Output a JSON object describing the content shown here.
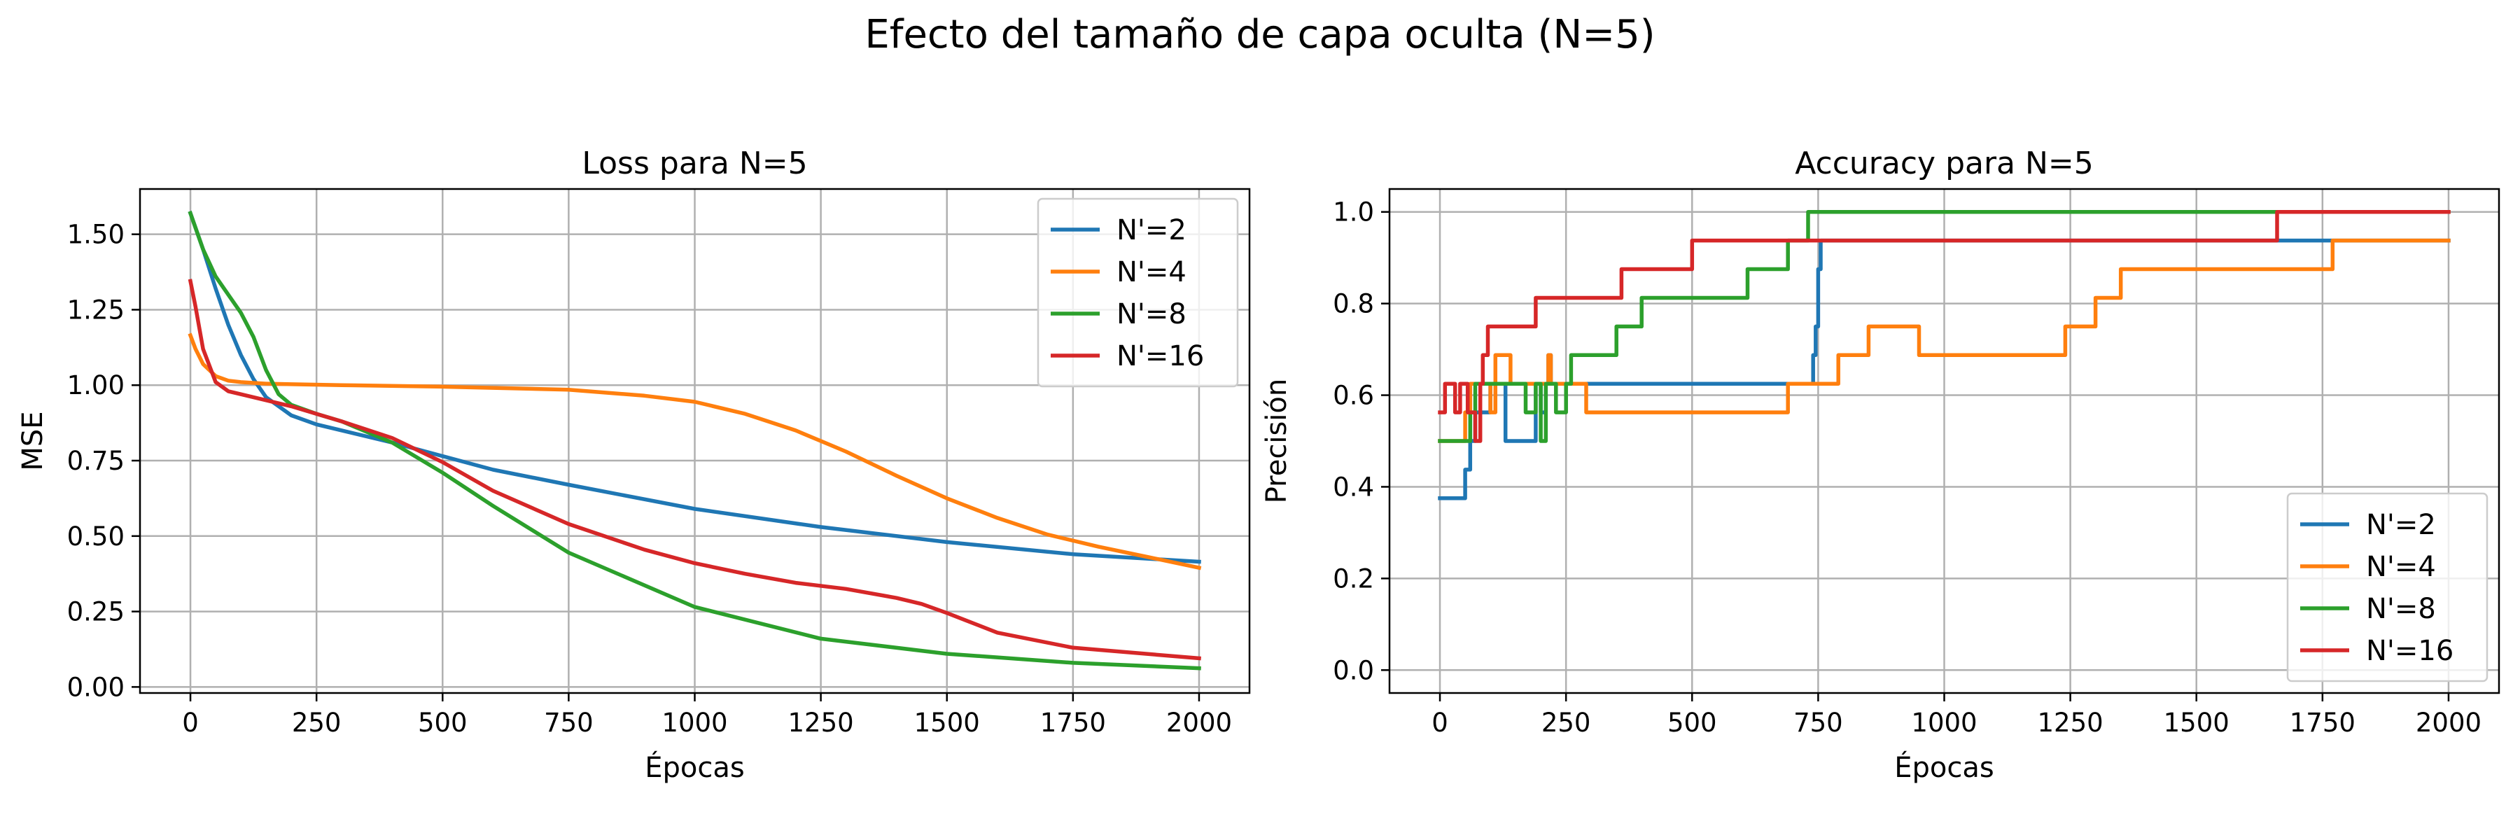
{
  "figure": {
    "suptitle": "Efecto del tamaño de capa oculta (N=5)"
  },
  "colors": {
    "N'=2": "#1f77b4",
    "N'=4": "#ff7f0e",
    "N'=8": "#2ca02c",
    "N'=16": "#d62728"
  },
  "chart_data": [
    {
      "type": "line",
      "title": "Loss para N=5",
      "xlabel": "Épocas",
      "ylabel": "MSE",
      "xlim": [
        -100,
        2100
      ],
      "ylim": [
        -0.02,
        1.65
      ],
      "xticks": [
        0,
        250,
        500,
        750,
        1000,
        1250,
        1500,
        1750,
        2000
      ],
      "xtick_labels": [
        "0",
        "250",
        "500",
        "750",
        "1000",
        "1250",
        "1500",
        "1750",
        "2000"
      ],
      "yticks": [
        0.0,
        0.25,
        0.5,
        0.75,
        1.0,
        1.25,
        1.5
      ],
      "ytick_labels": [
        "0.00",
        "0.25",
        "0.50",
        "0.75",
        "1.00",
        "1.25",
        "1.50"
      ],
      "grid": true,
      "legend": "top-right",
      "series": [
        {
          "name": "N'=2",
          "x": [
            0,
            25,
            50,
            75,
            100,
            125,
            150,
            175,
            200,
            250,
            300,
            400,
            500,
            600,
            750,
            1000,
            1250,
            1500,
            1750,
            2000
          ],
          "y": [
            1.57,
            1.45,
            1.32,
            1.2,
            1.1,
            1.02,
            0.96,
            0.93,
            0.9,
            0.87,
            0.85,
            0.81,
            0.765,
            0.72,
            0.67,
            0.59,
            0.53,
            0.48,
            0.44,
            0.415
          ]
        },
        {
          "name": "N'=4",
          "x": [
            0,
            10,
            25,
            50,
            75,
            100,
            150,
            200,
            300,
            500,
            750,
            900,
            1000,
            1100,
            1200,
            1300,
            1400,
            1500,
            1600,
            1700,
            1800,
            1900,
            2000
          ],
          "y": [
            1.165,
            1.12,
            1.07,
            1.03,
            1.015,
            1.01,
            1.005,
            1.003,
            1.0,
            0.995,
            0.985,
            0.965,
            0.945,
            0.905,
            0.85,
            0.78,
            0.7,
            0.625,
            0.56,
            0.505,
            0.465,
            0.43,
            0.395
          ]
        },
        {
          "name": "N'=8",
          "x": [
            0,
            25,
            50,
            75,
            100,
            125,
            150,
            175,
            200,
            250,
            300,
            400,
            500,
            600,
            750,
            1000,
            1250,
            1500,
            1750,
            2000
          ],
          "y": [
            1.57,
            1.45,
            1.36,
            1.3,
            1.24,
            1.16,
            1.05,
            0.97,
            0.935,
            0.905,
            0.88,
            0.81,
            0.71,
            0.6,
            0.445,
            0.265,
            0.16,
            0.11,
            0.08,
            0.062
          ]
        },
        {
          "name": "N'=16",
          "x": [
            0,
            10,
            25,
            50,
            75,
            100,
            150,
            200,
            250,
            300,
            400,
            500,
            600,
            750,
            900,
            1000,
            1100,
            1200,
            1300,
            1400,
            1450,
            1500,
            1600,
            1750,
            2000
          ],
          "y": [
            1.345,
            1.26,
            1.12,
            1.01,
            0.98,
            0.97,
            0.95,
            0.93,
            0.905,
            0.88,
            0.825,
            0.745,
            0.65,
            0.54,
            0.455,
            0.41,
            0.375,
            0.345,
            0.325,
            0.295,
            0.275,
            0.245,
            0.18,
            0.13,
            0.095
          ]
        }
      ]
    },
    {
      "type": "line",
      "title": "Accuracy para N=5",
      "xlabel": "Épocas",
      "ylabel": "Precisión",
      "xlim": [
        -100,
        2100
      ],
      "ylim": [
        -0.05,
        1.05
      ],
      "xticks": [
        0,
        250,
        500,
        750,
        1000,
        1250,
        1500,
        1750,
        2000
      ],
      "xtick_labels": [
        "0",
        "250",
        "500",
        "750",
        "1000",
        "1250",
        "1500",
        "1750",
        "2000"
      ],
      "yticks": [
        0.0,
        0.2,
        0.4,
        0.6,
        0.8,
        1.0
      ],
      "ytick_labels": [
        "0.0",
        "0.2",
        "0.4",
        "0.6",
        "0.8",
        "1.0"
      ],
      "grid": true,
      "legend": "bottom-right",
      "step": true,
      "series": [
        {
          "name": "N'=2",
          "x": [
            0,
            50,
            60,
            70,
            100,
            130,
            190,
            200,
            210,
            215,
            220,
            740,
            745,
            750,
            755,
            1770,
            2000
          ],
          "y": [
            0.375,
            0.4375,
            0.5,
            0.5625,
            0.625,
            0.5,
            0.625,
            0.5625,
            0.625,
            0.6875,
            0.625,
            0.6875,
            0.75,
            0.875,
            0.9375,
            0.9375,
            0.9375
          ]
        },
        {
          "name": "N'=4",
          "x": [
            0,
            50,
            60,
            100,
            110,
            140,
            210,
            215,
            220,
            290,
            690,
            780,
            790,
            840,
            850,
            940,
            950,
            1240,
            1280,
            1300,
            1340,
            1350,
            1770,
            2000
          ],
          "y": [
            0.5,
            0.5625,
            0.625,
            0.5625,
            0.6875,
            0.625,
            0.625,
            0.6875,
            0.625,
            0.5625,
            0.625,
            0.625,
            0.6875,
            0.6875,
            0.75,
            0.75,
            0.6875,
            0.75,
            0.75,
            0.8125,
            0.8125,
            0.875,
            0.9375,
            0.9375
          ]
        },
        {
          "name": "N'=8",
          "x": [
            0,
            50,
            60,
            70,
            150,
            170,
            190,
            200,
            210,
            230,
            250,
            260,
            330,
            350,
            390,
            400,
            600,
            610,
            680,
            690,
            720,
            730,
            2000
          ],
          "y": [
            0.5,
            0.5,
            0.5625,
            0.625,
            0.625,
            0.5625,
            0.625,
            0.5,
            0.625,
            0.5625,
            0.625,
            0.6875,
            0.6875,
            0.75,
            0.75,
            0.8125,
            0.8125,
            0.875,
            0.875,
            0.9375,
            0.9375,
            1.0,
            1.0
          ]
        },
        {
          "name": "N'=16",
          "x": [
            0,
            10,
            20,
            30,
            40,
            55,
            70,
            80,
            85,
            90,
            95,
            100,
            140,
            190,
            200,
            360,
            370,
            500,
            510,
            1650,
            1660,
            2000
          ],
          "y": [
            0.5625,
            0.625,
            0.625,
            0.5625,
            0.625,
            0.5625,
            0.5,
            0.625,
            0.6875,
            0.6875,
            0.75,
            0.75,
            0.75,
            0.8125,
            0.8125,
            0.875,
            0.875,
            0.9375,
            0.9375,
            0.9375,
            1.0,
            1.0
          ]
        }
      ]
    }
  ]
}
